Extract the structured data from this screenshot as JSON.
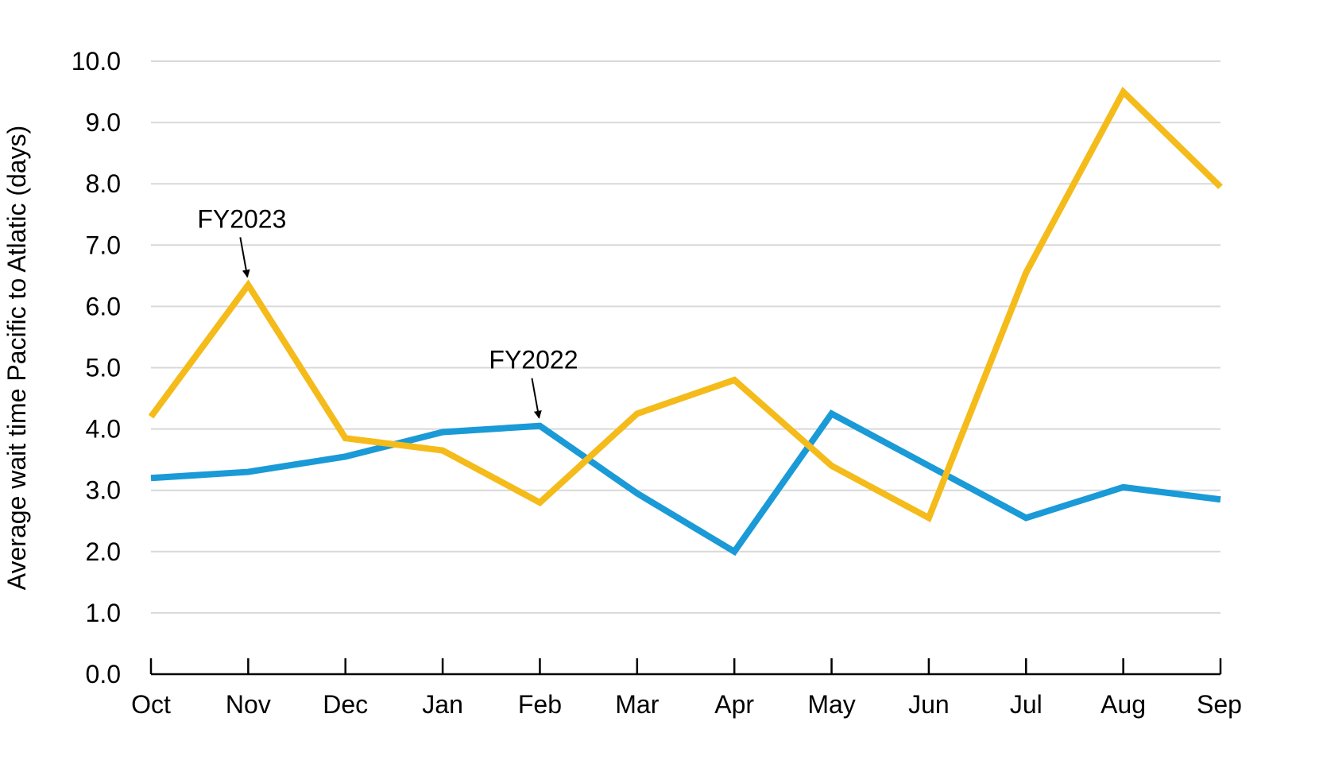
{
  "chart_data": {
    "type": "line",
    "categories": [
      "Oct",
      "Nov",
      "Dec",
      "Jan",
      "Feb",
      "Mar",
      "Apr",
      "May",
      "Jun",
      "Jul",
      "Aug",
      "Sep"
    ],
    "series": [
      {
        "name": "FY2022",
        "color": "#1a9ad6",
        "values": [
          3.2,
          3.3,
          3.55,
          3.95,
          4.05,
          2.95,
          2.0,
          4.25,
          3.4,
          2.55,
          3.05,
          2.85
        ]
      },
      {
        "name": "FY2023",
        "color": "#f4bb1a",
        "values": [
          4.2,
          6.35,
          3.85,
          3.65,
          2.8,
          4.25,
          4.8,
          3.4,
          2.55,
          6.55,
          9.5,
          7.95
        ]
      }
    ],
    "title": "",
    "xlabel": "",
    "ylabel": "Average wait time Pacific to Atlatic (days)",
    "ylim": [
      0,
      10
    ],
    "yticks": [
      "0.0",
      "1.0",
      "2.0",
      "3.0",
      "4.0",
      "5.0",
      "6.0",
      "7.0",
      "8.0",
      "9.0",
      "10.0"
    ],
    "grid": true,
    "annotations": [
      {
        "text": "FY2023",
        "series": "FY2023",
        "category": "Nov"
      },
      {
        "text": "FY2022",
        "series": "FY2022",
        "category": "Feb"
      }
    ]
  }
}
